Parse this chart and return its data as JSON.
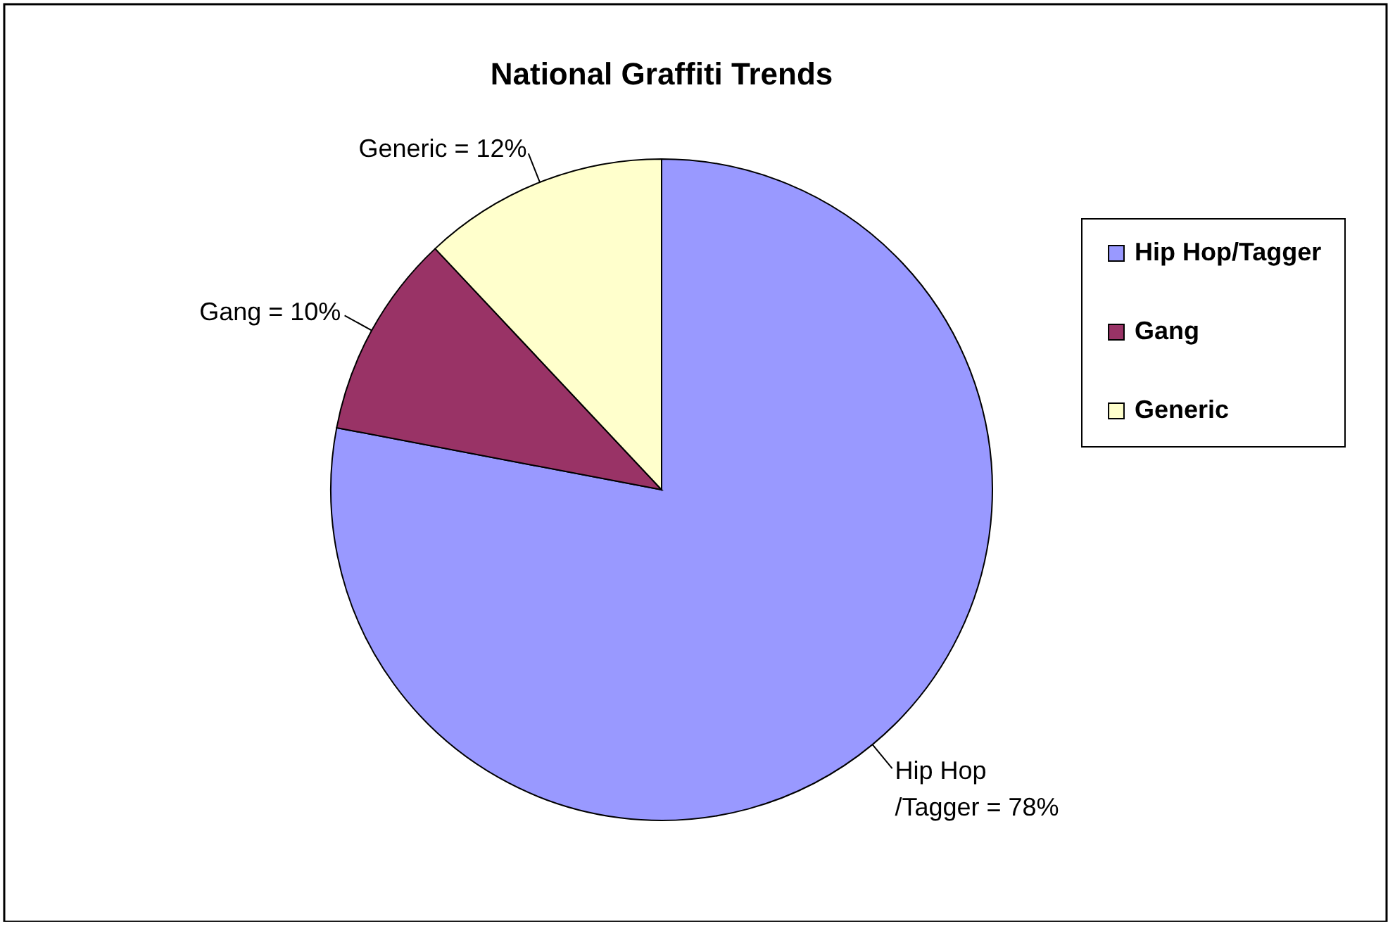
{
  "chart_data": {
    "type": "pie",
    "title": "National Graffiti Trends",
    "categories": [
      "Hip Hop/Tagger",
      "Gang",
      "Generic"
    ],
    "values": [
      78,
      10,
      12
    ],
    "colors": [
      "#9999ff",
      "#993366",
      "#ffffcc"
    ],
    "value_labels": [
      "Hip Hop\n/Tagger = 78%",
      "Gang = 10%",
      "Generic = 12%"
    ],
    "legend": "right"
  }
}
